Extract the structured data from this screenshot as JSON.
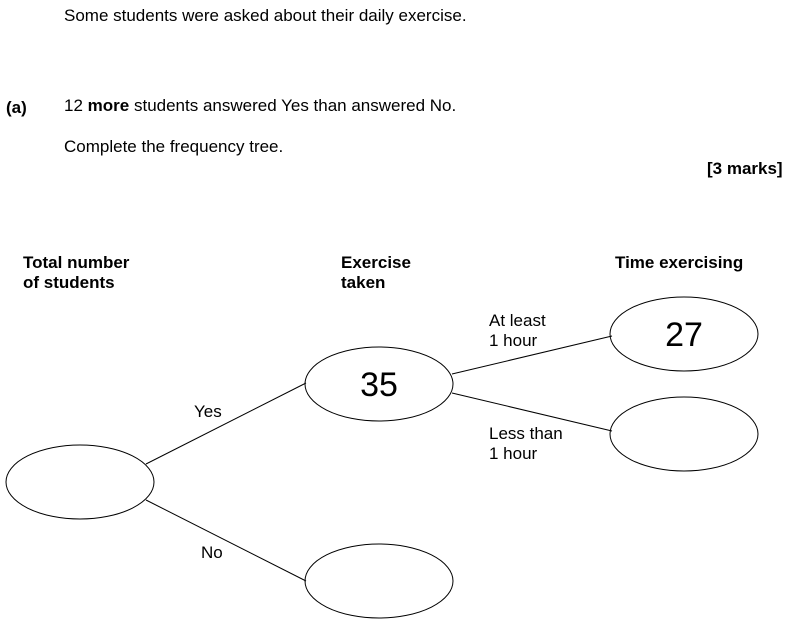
{
  "question": {
    "intro": "Some students were asked about their daily exercise.",
    "part_label": "(a)",
    "line1_prefix": "12",
    "line1_bold": "more",
    "line1_suffix": "students answered Yes than answered No.",
    "instruction": "Complete the frequency tree.",
    "marks": "[3 marks]"
  },
  "tree": {
    "headings": {
      "total_line1": "Total number",
      "total_line2": "of students",
      "exercise_line1": "Exercise",
      "exercise_line2": "taken",
      "time": "Time exercising"
    },
    "branch_labels": {
      "yes": "Yes",
      "no": "No",
      "at_least_line1": "At least",
      "at_least_line2": "1 hour",
      "less_than_line1": "Less than",
      "less_than_line2": "1 hour"
    },
    "nodes": {
      "total": "",
      "yes": "35",
      "no": "",
      "at_least": "27",
      "less_than": ""
    }
  }
}
